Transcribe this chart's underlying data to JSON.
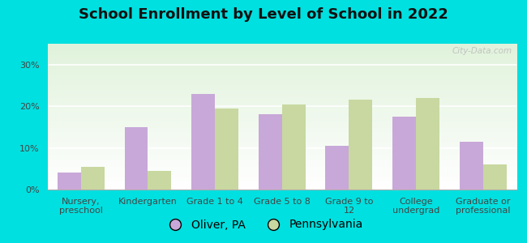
{
  "title": "School Enrollment by Level of School in 2022",
  "categories": [
    "Nursery,\npreschool",
    "Kindergarten",
    "Grade 1 to 4",
    "Grade 5 to 8",
    "Grade 9 to\n12",
    "College\nundergrad",
    "Graduate or\nprofessional"
  ],
  "oliver_values": [
    4.0,
    15.0,
    23.0,
    18.0,
    10.5,
    17.5,
    11.5
  ],
  "pennsylvania_values": [
    5.5,
    4.5,
    19.5,
    20.5,
    21.5,
    22.0,
    6.0
  ],
  "oliver_color": "#c8a8d8",
  "pennsylvania_color": "#c8d8a0",
  "background_outer": "#00e0e0",
  "ylim": [
    0,
    35
  ],
  "yticks": [
    0,
    10,
    20,
    30
  ],
  "bar_width": 0.35,
  "legend_labels": [
    "Oliver, PA",
    "Pennsylvania"
  ],
  "watermark": "City-Data.com",
  "title_fontsize": 13,
  "axis_fontsize": 8,
  "legend_fontsize": 10
}
